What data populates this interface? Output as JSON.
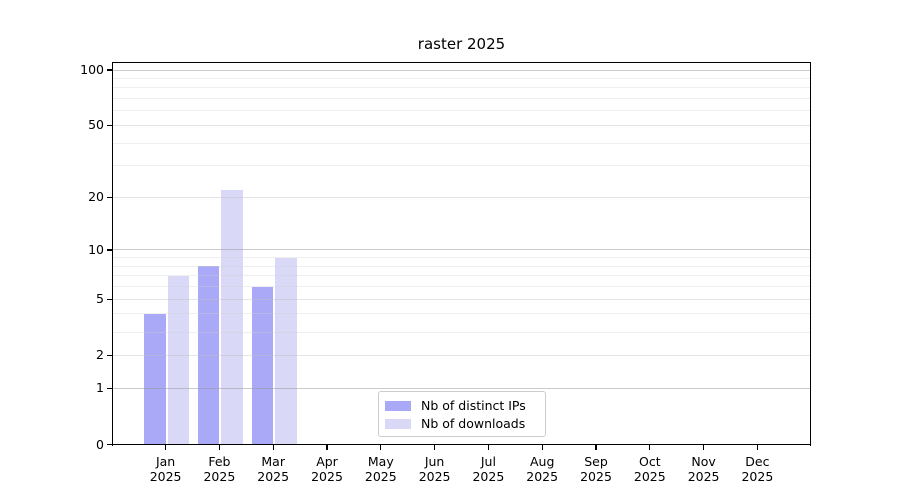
{
  "title": "raster 2025",
  "chart_data": {
    "type": "bar",
    "title": "raster 2025",
    "y_scale": "log1p",
    "ylim": [
      0,
      110.5
    ],
    "y_ticks": [
      0,
      1,
      2,
      5,
      10,
      20,
      50,
      100
    ],
    "y_decade_gridlines": [
      1,
      10,
      100
    ],
    "y_minor_gridlines": [
      3,
      4,
      6,
      7,
      8,
      9,
      30,
      40,
      60,
      70,
      80,
      90
    ],
    "grid": true,
    "legend_position": "lower center",
    "categories": [
      "Jan 2025",
      "Feb 2025",
      "Mar 2025",
      "Apr 2025",
      "May 2025",
      "Jun 2025",
      "Jul 2025",
      "Aug 2025",
      "Sep 2025",
      "Oct 2025",
      "Nov 2025",
      "Dec 2025"
    ],
    "series": [
      {
        "name": "Nb of distinct IPs",
        "color": "#a9a9f7",
        "values": [
          4,
          8,
          6,
          0,
          0,
          0,
          0,
          0,
          0,
          0,
          0,
          0
        ]
      },
      {
        "name": "Nb of downloads",
        "color": "#d9d9f7",
        "values": [
          7,
          22,
          9,
          0,
          0,
          0,
          0,
          0,
          0,
          0,
          0,
          0
        ]
      }
    ],
    "colors": {
      "axis": "#000000",
      "grid_decade": "rgba(150,150,150,0.50)",
      "grid_major": "rgba(190,190,190,0.42)",
      "grid_minor": "rgba(210,210,210,0.35)",
      "background": "#ffffff"
    }
  }
}
